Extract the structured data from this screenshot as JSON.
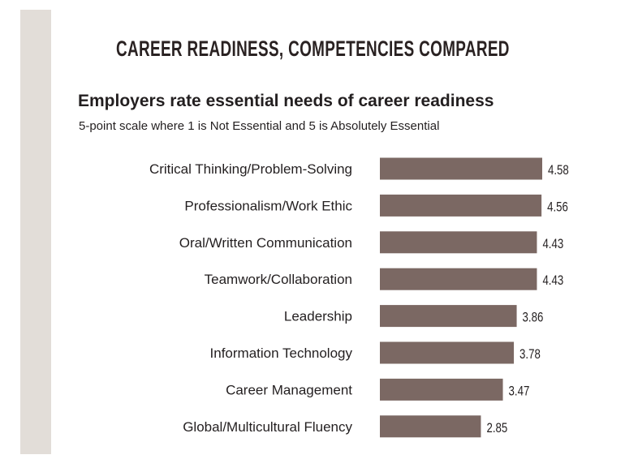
{
  "chart_data": {
    "type": "bar",
    "orientation": "horizontal",
    "title": "CAREER READINESS, COMPETENCIES COMPARED",
    "subtitle": "Employers rate essential needs of career readiness",
    "scale_note": "5-point scale where 1 is Not Essential and 5 is Absolutely Essential",
    "categories": [
      "Critical Thinking/Problem-Solving",
      "Professionalism/Work Ethic",
      "Oral/Written Communication",
      "Teamwork/Collaboration",
      "Leadership",
      "Information Technology",
      "Career Management",
      "Global/Multicultural Fluency"
    ],
    "values": [
      4.58,
      4.56,
      4.43,
      4.43,
      3.86,
      3.78,
      3.47,
      2.85
    ],
    "value_labels": [
      "4.58",
      "4.56",
      "4.43",
      "4.43",
      "3.86",
      "3.78",
      "3.47",
      "2.85"
    ],
    "bar_color": "#7b6863",
    "grid": false
  }
}
